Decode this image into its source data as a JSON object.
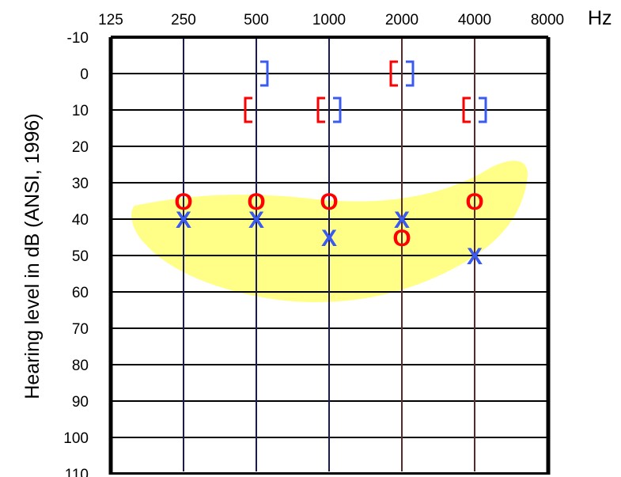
{
  "chart_data": {
    "type": "scatter",
    "title": "",
    "ylabel": "Hearing level in dB (ANSI, 1996)",
    "x_unit": "Hz",
    "x_ticks": [
      "125",
      "250",
      "500",
      "1000",
      "2000",
      "4000",
      "8000"
    ],
    "y_ticks": [
      "-10",
      "0",
      "10",
      "20",
      "30",
      "40",
      "50",
      "60",
      "70",
      "80",
      "90",
      "100",
      "110"
    ],
    "ylim": [
      -10,
      110
    ],
    "y_inverted": true,
    "grid": true,
    "speech_banana_color": "#ffff88",
    "series": [
      {
        "symbol": "O",
        "color": "#ff0000",
        "points": [
          {
            "x": 250,
            "y": 35
          },
          {
            "x": 500,
            "y": 35
          },
          {
            "x": 1000,
            "y": 35
          },
          {
            "x": 2000,
            "y": 45
          },
          {
            "x": 4000,
            "y": 35
          }
        ]
      },
      {
        "symbol": "X",
        "color": "#3a5af0",
        "points": [
          {
            "x": 250,
            "y": 40
          },
          {
            "x": 500,
            "y": 40
          },
          {
            "x": 1000,
            "y": 45
          },
          {
            "x": 2000,
            "y": 40
          },
          {
            "x": 4000,
            "y": 50
          }
        ]
      },
      {
        "symbol": "[",
        "color": "#ff0000",
        "points": [
          {
            "x": 500,
            "y": 10
          },
          {
            "x": 1000,
            "y": 10
          },
          {
            "x": 2000,
            "y": 0
          },
          {
            "x": 4000,
            "y": 10
          }
        ]
      },
      {
        "symbol": "]",
        "color": "#3a5af0",
        "points": [
          {
            "x": 500,
            "y": 0
          },
          {
            "x": 1000,
            "y": 10
          },
          {
            "x": 2000,
            "y": 0
          },
          {
            "x": 4000,
            "y": 10
          }
        ]
      }
    ],
    "grid_color_low": "#1a1a5a",
    "grid_color_high": "#5a2a2a"
  }
}
